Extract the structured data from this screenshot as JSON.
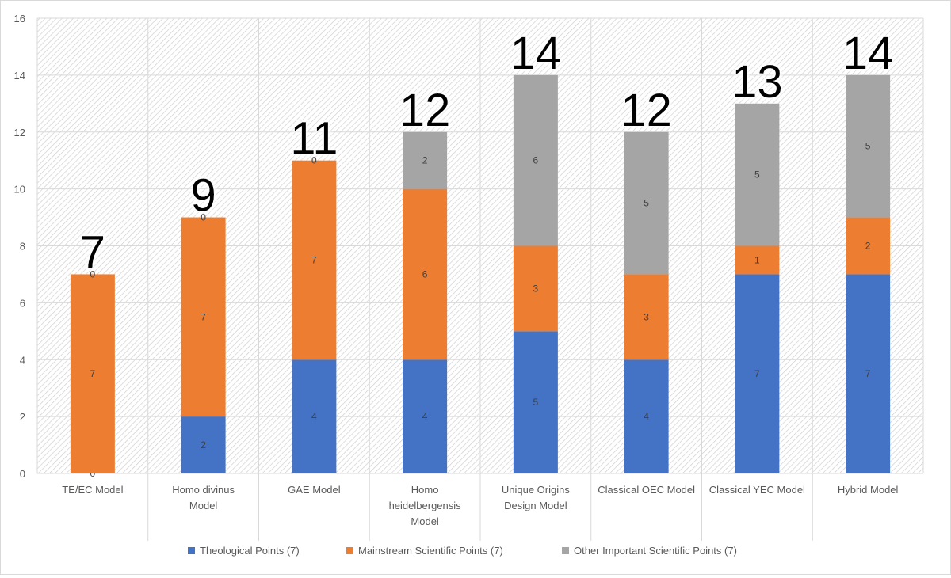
{
  "chart_data": {
    "type": "bar",
    "stacked": true,
    "title": "",
    "xlabel": "",
    "ylabel": "",
    "ylim": [
      0,
      16
    ],
    "yticks": [
      0,
      2,
      4,
      6,
      8,
      10,
      12,
      14,
      16
    ],
    "grid": true,
    "legend_position": "bottom",
    "categories": [
      [
        "TE/EC Model"
      ],
      [
        "Homo divinus",
        "Model"
      ],
      [
        "GAE Model"
      ],
      [
        "Homo",
        "heidelbergensis",
        "Model"
      ],
      [
        "Unique Origins",
        "Design Model"
      ],
      [
        "Classical OEC Model"
      ],
      [
        "Classical YEC Model"
      ],
      [
        "Hybrid Model"
      ]
    ],
    "series": [
      {
        "name": "Theological Points (7)",
        "color": "#4472C4",
        "values": [
          0,
          2,
          4,
          4,
          5,
          4,
          7,
          7
        ],
        "labels": [
          "0",
          "2",
          "4",
          "4",
          "5",
          "4",
          "7",
          "7"
        ]
      },
      {
        "name": "Mainstream Scientific Points (7)",
        "color": "#ED7D31",
        "values": [
          7,
          7,
          7,
          6,
          3,
          3,
          1,
          2
        ],
        "labels": [
          "7",
          "7",
          "7",
          "6",
          "3",
          "3",
          "1",
          "2"
        ]
      },
      {
        "name": "Other Important Scientific Points (7)",
        "color": "#A5A5A5",
        "values": [
          0,
          0,
          0,
          2,
          6,
          5,
          5,
          5
        ],
        "labels": [
          "0",
          "0",
          "0",
          "2",
          "6",
          "5",
          "5",
          "5"
        ]
      }
    ],
    "totals": [
      7,
      9,
      11,
      12,
      14,
      12,
      13,
      14
    ]
  }
}
